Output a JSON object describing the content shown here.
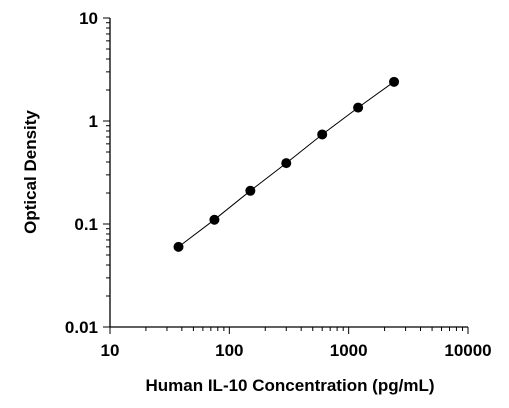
{
  "chart_data": {
    "type": "scatter",
    "title": "",
    "xlabel": "Human IL-10 Concentration (pg/mL)",
    "ylabel": "Optical Density",
    "x_scale": "log",
    "y_scale": "log",
    "xlim": [
      10,
      10000
    ],
    "ylim": [
      0.01,
      10
    ],
    "x_ticks": [
      {
        "value": 10,
        "label": "10"
      },
      {
        "value": 100,
        "label": "100"
      },
      {
        "value": 1000,
        "label": "1000"
      },
      {
        "value": 10000,
        "label": "10000"
      }
    ],
    "y_ticks": [
      {
        "value": 0.01,
        "label": "0.01"
      },
      {
        "value": 0.1,
        "label": "0.1"
      },
      {
        "value": 1,
        "label": "1"
      },
      {
        "value": 10,
        "label": "10"
      }
    ],
    "grid": false,
    "legend": "none",
    "fit_line": true,
    "series": [
      {
        "points": [
          {
            "x": 37.5,
            "y": 0.06
          },
          {
            "x": 75,
            "y": 0.11
          },
          {
            "x": 150,
            "y": 0.21
          },
          {
            "x": 300,
            "y": 0.39
          },
          {
            "x": 600,
            "y": 0.74
          },
          {
            "x": 1200,
            "y": 1.35
          },
          {
            "x": 2400,
            "y": 2.4
          }
        ]
      }
    ],
    "colors": {
      "marker": "#000000",
      "line": "#000000",
      "axis": "#000000"
    }
  }
}
